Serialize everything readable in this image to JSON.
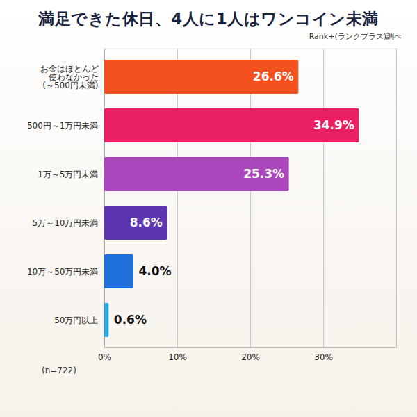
{
  "chart_data": {
    "type": "bar",
    "orientation": "horizontal",
    "title": "満足できた休日、4人に1人はワンコイン未満",
    "subtitle": "Rank+(ランクプラス)調べ",
    "note": "(n=722)",
    "categories": [
      "お金はほとんど\n使わなかった\n(～500円未満)",
      "500円～1万円未満",
      "1万～5万円未満",
      "5万～10万円未満",
      "10万～50万円未満",
      "50万円以上"
    ],
    "values": [
      26.6,
      34.9,
      25.3,
      8.6,
      4.0,
      0.6
    ],
    "value_labels": [
      "26.6%",
      "34.9%",
      "25.3%",
      "8.6%",
      "4.0%",
      "0.6%"
    ],
    "colors": [
      "#f4511e",
      "#e91e63",
      "#ab47bc",
      "#5e35b1",
      "#1e6fd9",
      "#29a8e0"
    ],
    "xlim": [
      0,
      40
    ],
    "xticks": [
      {
        "value": 0,
        "label": "0%"
      },
      {
        "value": 10,
        "label": "10%"
      },
      {
        "value": 20,
        "label": "20%"
      },
      {
        "value": 30,
        "label": "30%"
      }
    ],
    "grid": true,
    "data_labels": true
  }
}
